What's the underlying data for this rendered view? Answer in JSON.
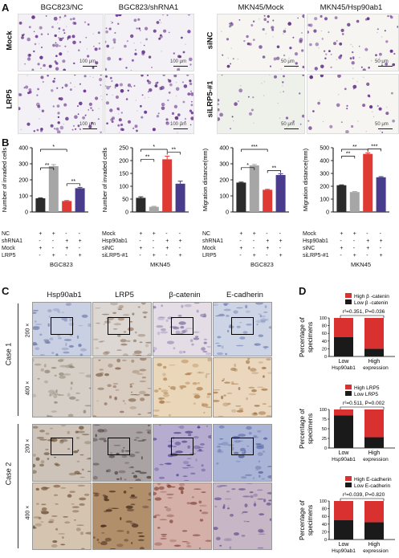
{
  "panels": {
    "A": "A",
    "B": "B",
    "C": "C",
    "D": "D"
  },
  "panelA": {
    "left_headers": [
      "BGC823/NC",
      "BGC823/shRNA1"
    ],
    "right_headers": [
      "MKN45/Mock",
      "MKN45/Hsp90ab1"
    ],
    "left_rows": [
      "Mock",
      "LRP5"
    ],
    "right_rows": [
      "siNC",
      "siLRP5-#1"
    ],
    "scale_left": "100 μm",
    "scale_right": "50 μm",
    "colors": {
      "stain": "#6b3a8f",
      "bg_left": "#f4f1f6",
      "bg_right": "#f6f5f2"
    }
  },
  "panelB": {
    "tables": [
      {
        "rows": [
          [
            "NC",
            "+",
            "+",
            "-",
            "-"
          ],
          [
            "shRNA1",
            "-",
            "-",
            "+",
            "+"
          ],
          [
            "Mock",
            "+",
            "-",
            "+",
            "-"
          ],
          [
            "LRP5",
            "-",
            "+",
            "-",
            "+"
          ]
        ],
        "label": "BGC823"
      },
      {
        "rows": [
          [
            "Mock",
            "+",
            "+",
            "-",
            "-"
          ],
          [
            "Hsp90ab1",
            "-",
            "-",
            "+",
            "+"
          ],
          [
            "siNC",
            "+",
            "-",
            "+",
            "-"
          ],
          [
            "siLRP5-#1",
            "-",
            "+",
            "-",
            "+"
          ]
        ],
        "label": "MKN45"
      },
      {
        "rows": [
          [
            "NC",
            "+",
            "+",
            "-",
            "-"
          ],
          [
            "shRNA1",
            "-",
            "-",
            "+",
            "+"
          ],
          [
            "Mock",
            "+",
            "-",
            "+",
            "-"
          ],
          [
            "LRP5",
            "-",
            "+",
            "-",
            "+"
          ]
        ],
        "label": "BGC823"
      },
      {
        "rows": [
          [
            "Mock",
            "+",
            "+",
            "-",
            "-"
          ],
          [
            "Hsp90ab1",
            "-",
            "-",
            "+",
            "+"
          ],
          [
            "siNC",
            "+",
            "-",
            "+",
            "-"
          ],
          [
            "siLRP5-#1",
            "-",
            "+",
            "-",
            "+"
          ]
        ],
        "label": "MKN45"
      }
    ]
  },
  "panelC": {
    "col_headers": [
      "Hsp90ab1",
      "LRP5",
      "β-catenin",
      "E-cadherin"
    ],
    "cases": [
      "Case 1",
      "Case 2"
    ],
    "mags": [
      "200 ×",
      "400 ×"
    ]
  },
  "panelD": {
    "ylabel": [
      "Percentage of",
      "specimens"
    ],
    "subcharts": [
      {
        "legend": [
          "High β -catenin",
          "Low  β -catenin"
        ],
        "stat": "r²=0.351, P=0.036",
        "xlabels": [
          [
            "Low",
            "Hsp90ab1"
          ],
          [
            "High",
            "expression"
          ]
        ]
      },
      {
        "legend": [
          "High LRP5",
          "Low  LRP5"
        ],
        "stat": "r²=0.511, P=0.002",
        "xlabels": [
          [
            "Low",
            "Hsp90ab1"
          ],
          [
            "High",
            "expression"
          ]
        ]
      },
      {
        "legend": [
          "High E-cadherin",
          "Low E-cadherin"
        ],
        "stat": "r²=0.039, P=0.820",
        "xlabels": [
          [
            "Low",
            "Hsp90ab1"
          ],
          [
            "High",
            "expression"
          ]
        ]
      }
    ]
  },
  "chart_data": [
    {
      "type": "bar",
      "ylabel": "Number of invaded cells",
      "ylim": [
        0,
        400
      ],
      "yticks": [
        0,
        100,
        200,
        300,
        400
      ],
      "values": [
        85,
        285,
        68,
        148
      ],
      "errors": [
        3,
        10,
        3,
        5
      ],
      "colors": [
        "#2b2b2b",
        "#a6a6a6",
        "#e03a35",
        "#4a3c8c"
      ],
      "sig": [
        {
          "from": 0,
          "to": 1,
          "text": "**"
        },
        {
          "from": 0,
          "to": 2,
          "text": "*"
        },
        {
          "from": 2,
          "to": 3,
          "text": "**"
        }
      ]
    },
    {
      "type": "bar",
      "ylabel": "Number of invaded cells",
      "ylim": [
        0,
        250
      ],
      "yticks": [
        0,
        50,
        100,
        150,
        200,
        250
      ],
      "values": [
        55,
        20,
        205,
        110
      ],
      "errors": [
        4,
        2,
        12,
        10
      ],
      "colors": [
        "#2b2b2b",
        "#a6a6a6",
        "#e03a35",
        "#4a3c8c"
      ],
      "sig": [
        {
          "from": 0,
          "to": 1,
          "text": "**"
        },
        {
          "from": 0,
          "to": 2,
          "text": "*"
        },
        {
          "from": 2,
          "to": 3,
          "text": "**"
        }
      ]
    },
    {
      "type": "bar",
      "ylabel": "Migration distance(mm)",
      "ylim": [
        0,
        400
      ],
      "yticks": [
        0,
        100,
        200,
        300,
        400
      ],
      "values": [
        183,
        290,
        138,
        230
      ],
      "errors": [
        3,
        6,
        3,
        8
      ],
      "colors": [
        "#2b2b2b",
        "#a6a6a6",
        "#e03a35",
        "#4a3c8c"
      ],
      "sig": [
        {
          "from": 0,
          "to": 1,
          "text": "*"
        },
        {
          "from": 0,
          "to": 2,
          "text": "***"
        },
        {
          "from": 2,
          "to": 3,
          "text": "**"
        }
      ]
    },
    {
      "type": "bar",
      "ylabel": "Migration distance(mm)",
      "ylim": [
        0,
        500
      ],
      "yticks": [
        0,
        100,
        200,
        300,
        400,
        500
      ],
      "values": [
        208,
        155,
        452,
        270
      ],
      "errors": [
        3,
        4,
        8,
        5
      ],
      "colors": [
        "#2b2b2b",
        "#a6a6a6",
        "#e03a35",
        "#4a3c8c"
      ],
      "sig": [
        {
          "from": 0,
          "to": 1,
          "text": "**"
        },
        {
          "from": 0,
          "to": 2,
          "text": "**"
        },
        {
          "from": 2,
          "to": 3,
          "text": "***"
        }
      ]
    },
    {
      "type": "bar",
      "stacked": true,
      "categories": [
        "Low",
        "High"
      ],
      "ylim": [
        0,
        100
      ],
      "yticks": [
        0,
        20,
        40,
        60,
        80,
        100
      ],
      "series": [
        {
          "name": "Low  β -catenin",
          "values": [
            50,
            20
          ],
          "color": "#1a1a1a"
        },
        {
          "name": "High β -catenin",
          "values": [
            50,
            80
          ],
          "color": "#d9312f"
        }
      ]
    },
    {
      "type": "bar",
      "stacked": true,
      "categories": [
        "Low",
        "High"
      ],
      "ylim": [
        0,
        100
      ],
      "yticks": [
        0,
        25,
        50,
        75,
        100
      ],
      "series": [
        {
          "name": "Low  LRP5",
          "values": [
            85,
            28
          ],
          "color": "#1a1a1a"
        },
        {
          "name": "High LRP5",
          "values": [
            15,
            72
          ],
          "color": "#d9312f"
        }
      ]
    },
    {
      "type": "bar",
      "stacked": true,
      "categories": [
        "Low",
        "High"
      ],
      "ylim": [
        0,
        100
      ],
      "yticks": [
        0,
        20,
        40,
        60,
        80,
        100
      ],
      "series": [
        {
          "name": "Low E-cadherin",
          "values": [
            50,
            45
          ],
          "color": "#1a1a1a"
        },
        {
          "name": "High E-cadherin",
          "values": [
            50,
            55
          ],
          "color": "#d9312f"
        }
      ]
    }
  ]
}
